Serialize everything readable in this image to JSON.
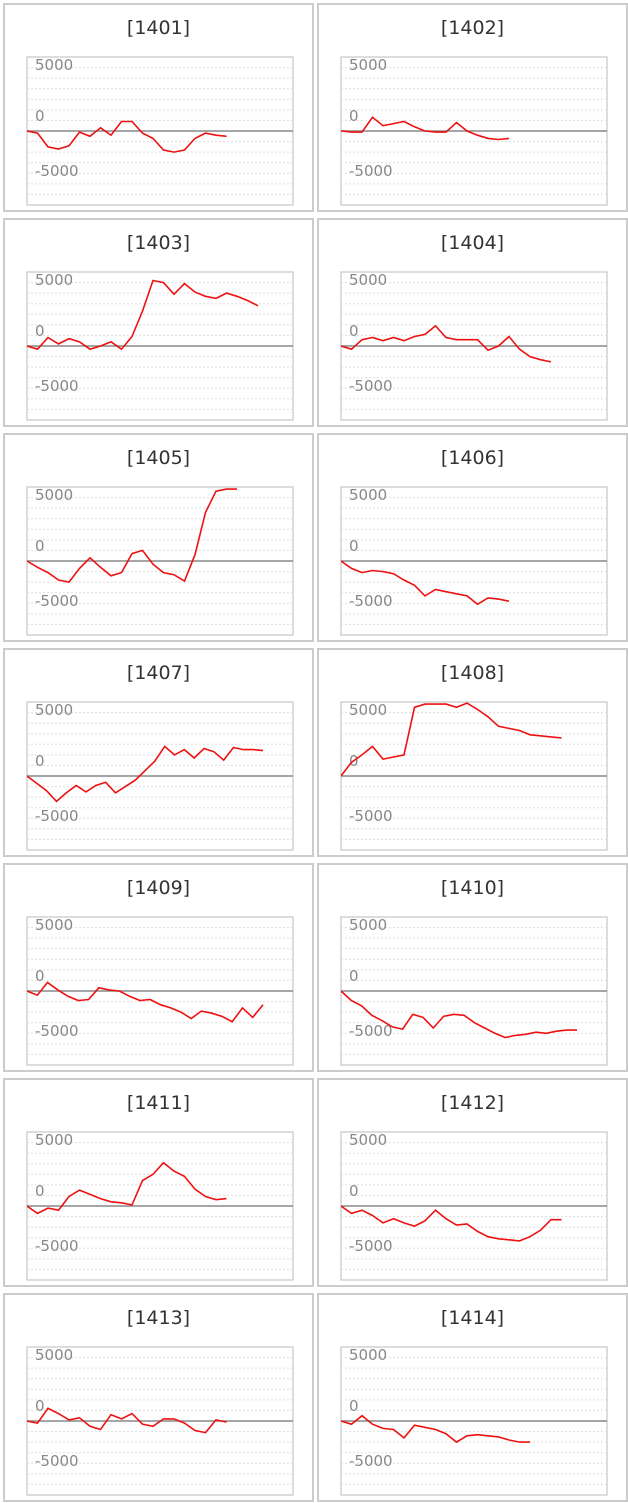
{
  "chart_data": [
    {
      "type": "line",
      "title": "[1401]",
      "yticks": [
        "5000",
        "0",
        "-5000"
      ],
      "ylim": [
        -7000,
        7000
      ],
      "x": [
        0,
        1,
        2,
        3,
        4,
        5,
        6,
        7,
        8,
        9,
        10,
        11,
        12,
        13,
        14,
        15,
        16,
        17,
        18,
        19
      ],
      "values": [
        0,
        -200,
        -1500,
        -1700,
        -1400,
        -100,
        -500,
        300,
        -400,
        900,
        900,
        -200,
        -700,
        -1800,
        -2000,
        -1800,
        -700,
        -200,
        -400,
        -500
      ],
      "color": "#ee1111"
    },
    {
      "type": "line",
      "title": "[1402]",
      "yticks": [
        "5000",
        "0",
        "-5000"
      ],
      "ylim": [
        -7000,
        7000
      ],
      "x": [
        0,
        1,
        2,
        3,
        4,
        5,
        6,
        7,
        8,
        9,
        10,
        11,
        12,
        13,
        14,
        15,
        16
      ],
      "values": [
        0,
        -100,
        -100,
        1300,
        500,
        700,
        900,
        400,
        0,
        -100,
        -100,
        800,
        0,
        -400,
        -700,
        -800,
        -700
      ],
      "color": "#ee1111"
    },
    {
      "type": "line",
      "title": "[1403]",
      "yticks": [
        "5000",
        "0",
        "-5000"
      ],
      "ylim": [
        -7000,
        7000
      ],
      "x": [
        0,
        1,
        2,
        3,
        4,
        5,
        6,
        7,
        8,
        9,
        10,
        11,
        12,
        13,
        14,
        15,
        16,
        17,
        18,
        19,
        20,
        21,
        22
      ],
      "values": [
        0,
        -300,
        800,
        200,
        700,
        400,
        -300,
        0,
        400,
        -300,
        900,
        3300,
        6200,
        6000,
        4900,
        5900,
        5100,
        4700,
        4500,
        5000,
        4700,
        4300,
        3800
      ],
      "color": "#ee1111"
    },
    {
      "type": "line",
      "title": "[1404]",
      "yticks": [
        "5000",
        "0",
        "-5000"
      ],
      "ylim": [
        -7000,
        7000
      ],
      "x": [
        0,
        1,
        2,
        3,
        4,
        5,
        6,
        7,
        8,
        9,
        10,
        11,
        12,
        13,
        14,
        15,
        16,
        17,
        18,
        19,
        20
      ],
      "values": [
        0,
        -300,
        600,
        800,
        500,
        800,
        500,
        900,
        1100,
        1900,
        800,
        600,
        600,
        600,
        -400,
        0,
        900,
        -300,
        -1000,
        -1300,
        -1500
      ],
      "color": "#ee1111"
    },
    {
      "type": "line",
      "title": "[1405]",
      "yticks": [
        "5000",
        "0",
        "-5000"
      ],
      "ylim": [
        -7000,
        7000
      ],
      "x": [
        0,
        1,
        2,
        3,
        4,
        5,
        6,
        7,
        8,
        9,
        10,
        11,
        12,
        13,
        14,
        15,
        16,
        17,
        18,
        19,
        20
      ],
      "values": [
        0,
        -600,
        -1100,
        -1800,
        -2000,
        -700,
        300,
        -600,
        -1400,
        -1100,
        700,
        1000,
        -300,
        -1100,
        -1300,
        -1900,
        600,
        4600,
        6600,
        6800,
        6800
      ],
      "color": "#ee1111"
    },
    {
      "type": "line",
      "title": "[1406]",
      "yticks": [
        "5000",
        "0",
        "-5000"
      ],
      "ylim": [
        -7000,
        7000
      ],
      "x": [
        0,
        1,
        2,
        3,
        4,
        5,
        6,
        7,
        8,
        9,
        10,
        11,
        12,
        13,
        14,
        15,
        16
      ],
      "values": [
        0,
        -700,
        -1100,
        -900,
        -1000,
        -1200,
        -1800,
        -2300,
        -3300,
        -2700,
        -2900,
        -3100,
        -3300,
        -4100,
        -3500,
        -3600,
        -3800
      ],
      "color": "#ee1111"
    },
    {
      "type": "line",
      "title": "[1407]",
      "yticks": [
        "5000",
        "0",
        "-5000"
      ],
      "ylim": [
        -7000,
        7000
      ],
      "x": [
        0,
        1,
        2,
        3,
        4,
        5,
        6,
        7,
        8,
        9,
        10,
        11,
        12,
        13,
        14,
        15,
        16,
        17,
        18,
        19,
        20,
        21,
        22,
        23,
        24
      ],
      "values": [
        0,
        -700,
        -1400,
        -2400,
        -1600,
        -900,
        -1500,
        -900,
        -600,
        -1600,
        -1000,
        -400,
        500,
        1400,
        2800,
        2000,
        2500,
        1700,
        2600,
        2300,
        1500,
        2700,
        2500,
        2500,
        2400
      ],
      "color": "#ee1111"
    },
    {
      "type": "line",
      "title": "[1408]",
      "yticks": [
        "5000",
        "0",
        "-5000"
      ],
      "ylim": [
        -7000,
        7000
      ],
      "x": [
        0,
        1,
        2,
        3,
        4,
        5,
        6,
        7,
        8,
        9,
        10,
        11,
        12,
        13,
        14,
        15,
        16,
        17,
        18,
        19,
        20,
        21
      ],
      "values": [
        0,
        1300,
        2000,
        2800,
        1600,
        1800,
        2000,
        6500,
        6800,
        6800,
        6800,
        6500,
        6900,
        6300,
        5600,
        4700,
        4500,
        4300,
        3900,
        3800,
        3700,
        3600
      ],
      "color": "#ee1111"
    },
    {
      "type": "line",
      "title": "[1409]",
      "yticks": [
        "5000",
        "0",
        "-5000"
      ],
      "ylim": [
        -7000,
        7000
      ],
      "x": [
        0,
        1,
        2,
        3,
        4,
        5,
        6,
        7,
        8,
        9,
        10,
        11,
        12,
        13,
        14,
        15,
        16,
        17,
        18,
        19,
        20,
        21,
        22,
        23
      ],
      "values": [
        0,
        -400,
        800,
        100,
        -500,
        -900,
        -800,
        300,
        100,
        0,
        -500,
        -900,
        -800,
        -1300,
        -1600,
        -2000,
        -2600,
        -1900,
        -2100,
        -2400,
        -2900,
        -1600,
        -2500,
        -1300
      ],
      "color": "#ee1111"
    },
    {
      "type": "line",
      "title": "[1410]",
      "yticks": [
        "5000",
        "0",
        "-5000"
      ],
      "ylim": [
        -7000,
        7000
      ],
      "x": [
        0,
        1,
        2,
        3,
        4,
        5,
        6,
        7,
        8,
        9,
        10,
        11,
        12,
        13,
        14,
        15,
        16,
        17,
        18,
        19,
        20,
        21,
        22,
        23
      ],
      "values": [
        0,
        -900,
        -1400,
        -2300,
        -2800,
        -3400,
        -3600,
        -2200,
        -2500,
        -3500,
        -2400,
        -2200,
        -2300,
        -3000,
        -3500,
        -4000,
        -4400,
        -4200,
        -4100,
        -3900,
        -4000,
        -3800,
        -3700,
        -3700
      ],
      "color": "#ee1111"
    },
    {
      "type": "line",
      "title": "[1411]",
      "yticks": [
        "5000",
        "0",
        "-5000"
      ],
      "ylim": [
        -7000,
        7000
      ],
      "x": [
        0,
        1,
        2,
        3,
        4,
        5,
        6,
        7,
        8,
        9,
        10,
        11,
        12,
        13,
        14,
        15,
        16,
        17,
        18,
        19
      ],
      "values": [
        0,
        -700,
        -200,
        -400,
        900,
        1500,
        1100,
        700,
        400,
        300,
        100,
        2400,
        3000,
        4100,
        3300,
        2800,
        1600,
        900,
        600,
        700
      ],
      "color": "#ee1111"
    },
    {
      "type": "line",
      "title": "[1412]",
      "yticks": [
        "5000",
        "0",
        "-5000"
      ],
      "ylim": [
        -7000,
        7000
      ],
      "x": [
        0,
        1,
        2,
        3,
        4,
        5,
        6,
        7,
        8,
        9,
        10,
        11,
        12,
        13,
        14,
        15,
        16,
        17,
        18,
        19,
        20,
        21
      ],
      "values": [
        0,
        -700,
        -400,
        -900,
        -1600,
        -1200,
        -1600,
        -1900,
        -1400,
        -400,
        -1200,
        -1800,
        -1700,
        -2400,
        -2900,
        -3100,
        -3200,
        -3300,
        -2900,
        -2300,
        -1300,
        -1300
      ],
      "color": "#ee1111"
    },
    {
      "type": "line",
      "title": "[1413]",
      "yticks": [
        "5000",
        "0",
        "-5000"
      ],
      "ylim": [
        -7000,
        7000
      ],
      "x": [
        0,
        1,
        2,
        3,
        4,
        5,
        6,
        7,
        8,
        9,
        10,
        11,
        12,
        13,
        14,
        15,
        16,
        17,
        18,
        19
      ],
      "values": [
        0,
        -200,
        1200,
        700,
        100,
        300,
        -500,
        -800,
        600,
        200,
        700,
        -300,
        -500,
        200,
        200,
        -200,
        -900,
        -1100,
        100,
        -100
      ],
      "color": "#ee1111"
    },
    {
      "type": "line",
      "title": "[1414]",
      "yticks": [
        "5000",
        "0",
        "-5000"
      ],
      "ylim": [
        -7000,
        7000
      ],
      "x": [
        0,
        1,
        2,
        3,
        4,
        5,
        6,
        7,
        8,
        9,
        10,
        11,
        12,
        13,
        14,
        15,
        16,
        17,
        18
      ],
      "values": [
        0,
        -300,
        500,
        -300,
        -700,
        -800,
        -1600,
        -400,
        -600,
        -800,
        -1200,
        -2000,
        -1400,
        -1300,
        -1400,
        -1500,
        -1800,
        -2000,
        -2000
      ],
      "color": "#ee1111"
    }
  ]
}
